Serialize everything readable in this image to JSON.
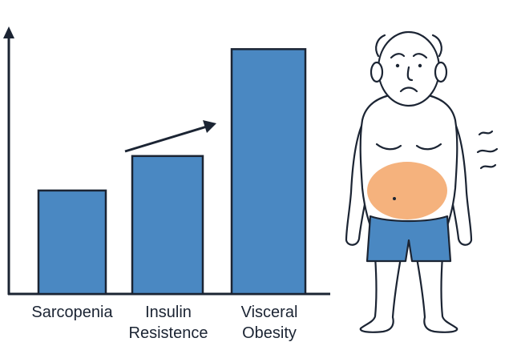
{
  "chart_data": {
    "type": "bar",
    "categories": [
      {
        "line1": "Sarcopenia",
        "line2": ""
      },
      {
        "line1": "Insulin",
        "line2": "Resistence"
      },
      {
        "line1": "Visceral",
        "line2": "Obesity"
      }
    ],
    "values": [
      30,
      40,
      71
    ],
    "ylim": [
      0,
      82
    ],
    "grid": false,
    "trend_arrow": "rising",
    "colors": {
      "bar_fill": "#4a88c2",
      "bar_stroke": "#1b2433",
      "axis": "#1b2433"
    }
  },
  "illustration": {
    "subject": "elderly-man-icon",
    "colors": {
      "outline": "#1b2433",
      "belly_fat": "#f5b27d",
      "shorts": "#4a88c2"
    }
  }
}
